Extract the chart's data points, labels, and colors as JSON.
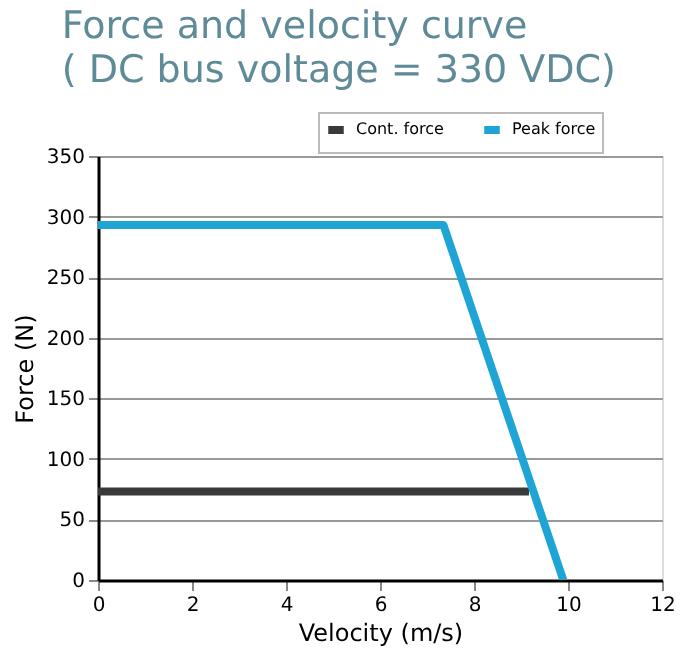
{
  "chart_data": {
    "type": "line",
    "title": "Force and velocity curve",
    "subtitle": "( DC bus voltage = 330 VDC)",
    "xlabel": "Velocity (m/s)",
    "ylabel": "Force (N)",
    "series": [
      {
        "name": "Cont. force",
        "color": "#3a3a3a",
        "x": [
          0,
          9.17
        ],
        "values": [
          73,
          73
        ]
      },
      {
        "name": "Peak force",
        "color": "#1ea5d6",
        "x": [
          0,
          7.35,
          9.9
        ],
        "values": [
          293,
          293,
          0
        ]
      }
    ],
    "xlim": [
      0,
      12
    ],
    "xticks": [
      0,
      2,
      4,
      6,
      8,
      10,
      12
    ],
    "ylim": [
      0,
      350
    ],
    "yticks": [
      0,
      50,
      100,
      150,
      200,
      250,
      300,
      350
    ],
    "grid": "y",
    "legend": "top right",
    "marker": "none",
    "line_style": "solid"
  }
}
